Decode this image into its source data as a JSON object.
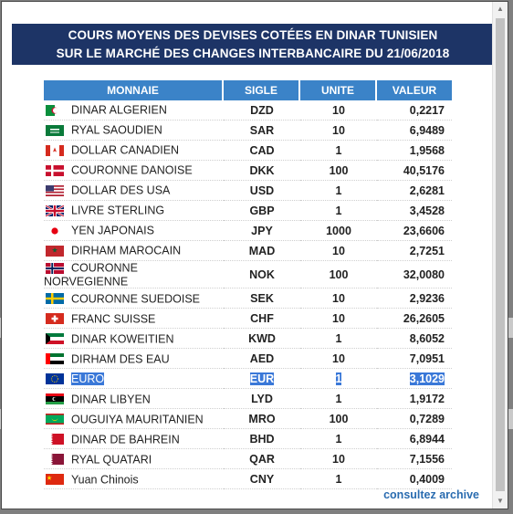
{
  "header": {
    "line1": "COURS MOYENS DES DEVISES COTÉES EN DINAR TUNISIEN",
    "line2": "SUR LE MARCHÉ DES CHANGES INTERBANCAIRE DU 21/06/2018"
  },
  "close_label": "×",
  "table": {
    "columns": [
      "MONNAIE",
      "SIGLE",
      "UNITE",
      "VALEUR"
    ],
    "rows": [
      {
        "name": "DINAR ALGERIEN",
        "code": "DZD",
        "unit": "10",
        "value": "0,2217",
        "flag": "dz-flag-icon"
      },
      {
        "name": "RYAL SAOUDIEN",
        "code": "SAR",
        "unit": "10",
        "value": "6,9489",
        "flag": "sa-flag-icon"
      },
      {
        "name": "DOLLAR CANADIEN",
        "code": "CAD",
        "unit": "1",
        "value": "1,9568",
        "flag": "ca-flag-icon"
      },
      {
        "name": "COURONNE DANOISE",
        "code": "DKK",
        "unit": "100",
        "value": "40,5176",
        "flag": "dk-flag-icon"
      },
      {
        "name": "DOLLAR DES USA",
        "code": "USD",
        "unit": "1",
        "value": "2,6281",
        "flag": "us-flag-icon"
      },
      {
        "name": "LIVRE STERLING",
        "code": "GBP",
        "unit": "1",
        "value": "3,4528",
        "flag": "gb-flag-icon"
      },
      {
        "name": "YEN JAPONAIS",
        "code": "JPY",
        "unit": "1000",
        "value": "23,6606",
        "flag": "jp-flag-icon"
      },
      {
        "name": "DIRHAM MAROCAIN",
        "code": "MAD",
        "unit": "10",
        "value": "2,7251",
        "flag": "ma-flag-icon"
      },
      {
        "name": "COURONNE NORVEGIENNE",
        "code": "NOK",
        "unit": "100",
        "value": "32,0080",
        "flag": "no-flag-icon"
      },
      {
        "name": "COURONNE SUEDOISE",
        "code": "SEK",
        "unit": "10",
        "value": "2,9236",
        "flag": "se-flag-icon"
      },
      {
        "name": "FRANC SUISSE",
        "code": "CHF",
        "unit": "10",
        "value": "26,2605",
        "flag": "ch-flag-icon"
      },
      {
        "name": "DINAR KOWEITIEN",
        "code": "KWD",
        "unit": "1",
        "value": "8,6052",
        "flag": "kw-flag-icon"
      },
      {
        "name": "DIRHAM DES EAU",
        "code": "AED",
        "unit": "10",
        "value": "7,0951",
        "flag": "ae-flag-icon"
      },
      {
        "name": "EURO",
        "code": "EUR",
        "unit": "1",
        "value": "3,1029",
        "flag": "eu-flag-icon",
        "selected": true
      },
      {
        "name": "DINAR LIBYEN",
        "code": "LYD",
        "unit": "1",
        "value": "1,9172",
        "flag": "ly-flag-icon"
      },
      {
        "name": "OUGUIYA MAURITANIEN",
        "code": "MRO",
        "unit": "100",
        "value": "0,7289",
        "flag": "mr-flag-icon"
      },
      {
        "name": "DINAR DE BAHREIN",
        "code": "BHD",
        "unit": "1",
        "value": "6,8944",
        "flag": "bh-flag-icon"
      },
      {
        "name": "RYAL QUATARI",
        "code": "QAR",
        "unit": "10",
        "value": "7,1556",
        "flag": "qa-flag-icon"
      },
      {
        "name": "Yuan Chinois",
        "code": "CNY",
        "unit": "1",
        "value": "0,4009",
        "flag": "cn-flag-icon"
      }
    ]
  },
  "archive_link": "consultez archive",
  "colors": {
    "header_bg": "#1d3466",
    "column_header_bg": "#3b83c8",
    "link": "#2a6cb0",
    "selection": "#3a78d8"
  }
}
